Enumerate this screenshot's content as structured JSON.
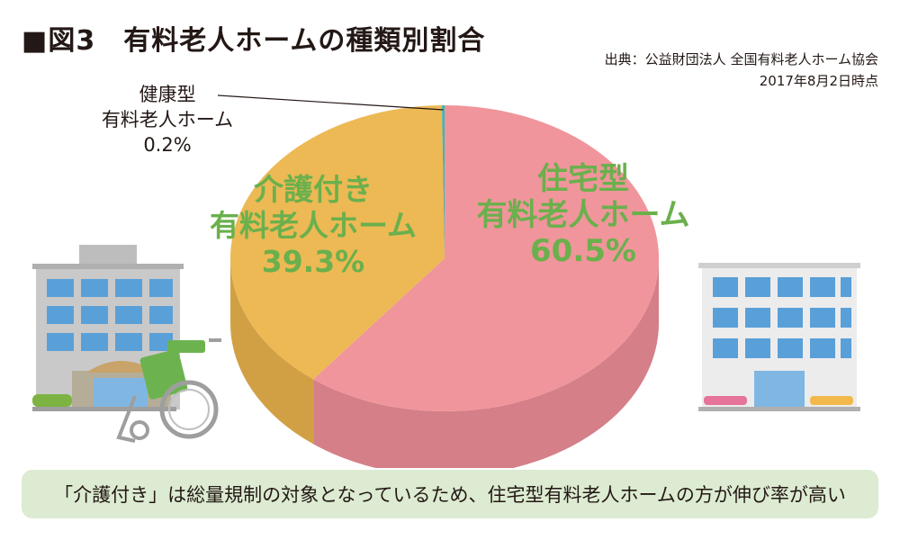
{
  "header": {
    "title": "■図3　有料老人ホームの種類別割合",
    "source_line1": "出典：公益財団法人 全国有料老人ホーム協会",
    "source_line2": "2017年8月2日時点"
  },
  "colors": {
    "accent_green": "#6ab04c",
    "background": "#ffffff",
    "footer_bg": "#dcebd1"
  },
  "chart_data": {
    "type": "pie",
    "title": "",
    "slices": [
      {
        "label_lines": [
          "住宅型",
          "有料老人ホーム",
          "60.5%"
        ],
        "value": 60.5,
        "color_top": "#f0959b",
        "color_side": "#d57f88"
      },
      {
        "label_lines": [
          "介護付き",
          "有料老人ホーム",
          "39.3%"
        ],
        "value": 39.3,
        "color_top": "#ecb955",
        "color_side": "#d1a044"
      },
      {
        "label_lines": [
          "健康型",
          "有料老人ホーム",
          "0.2%"
        ],
        "value": 0.2,
        "color_top": "#3fb6b4",
        "color_side": "#2f9896"
      }
    ]
  },
  "footer": {
    "text": "「介護付き」は総量規制の対象となっているため、住宅型有料老人ホームの方が伸び率が高い"
  }
}
